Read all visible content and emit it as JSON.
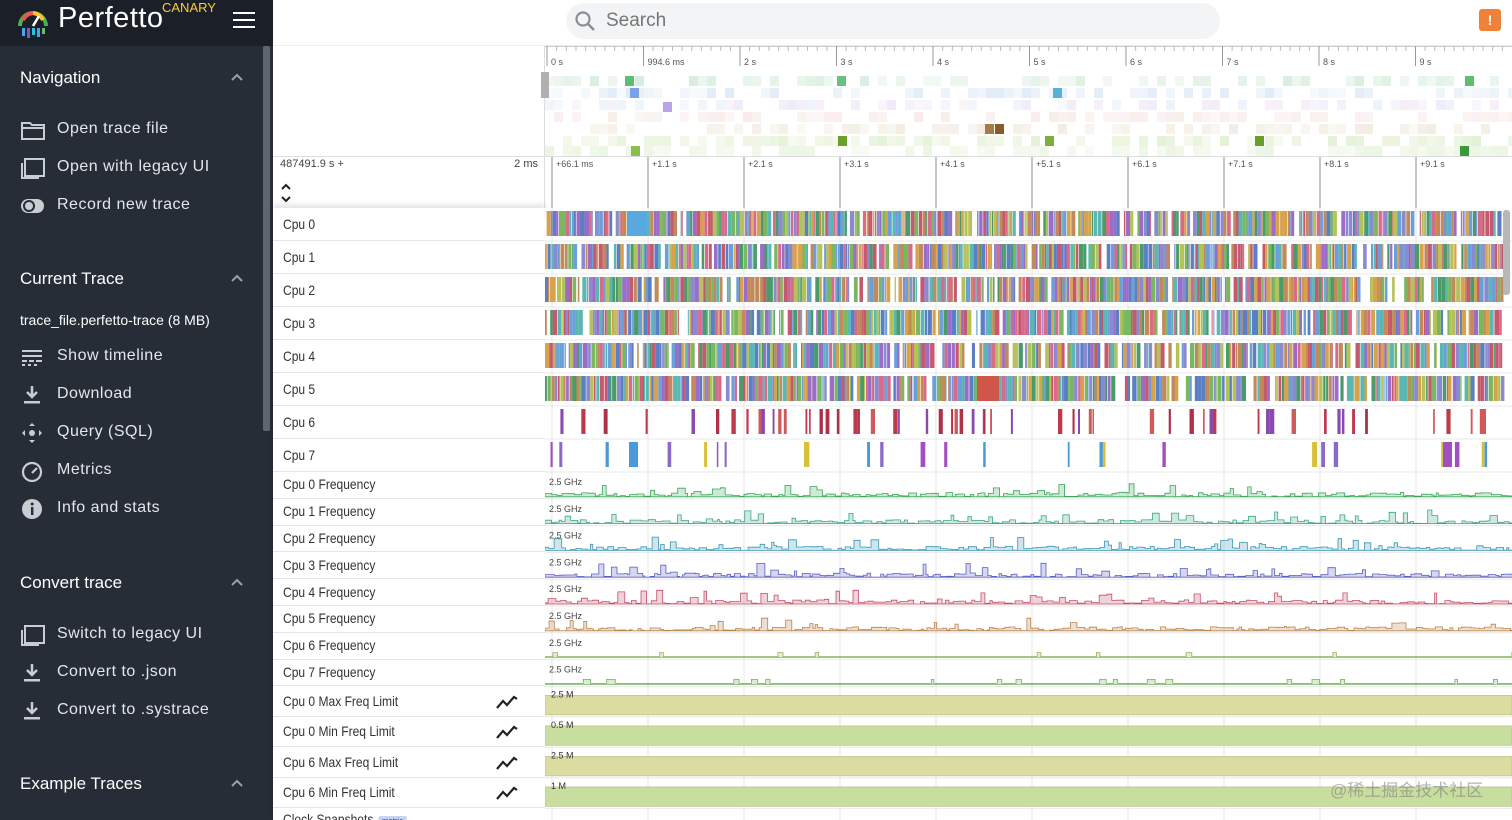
{
  "app": {
    "name": "Perfetto",
    "channel": "CANARY"
  },
  "search": {
    "placeholder": "Search"
  },
  "alert": {
    "symbol": "!"
  },
  "sidebar": {
    "navigation": {
      "title": "Navigation",
      "items": [
        {
          "label": "Open trace file",
          "icon": "folder-icon"
        },
        {
          "label": "Open with legacy UI",
          "icon": "window-icon"
        },
        {
          "label": "Record new trace",
          "icon": "record-toggle-icon"
        }
      ]
    },
    "current_trace": {
      "title": "Current Trace",
      "trace_name": "trace_file.perfetto-trace (8 MB)",
      "items": [
        {
          "label": "Show timeline",
          "icon": "timeline-icon"
        },
        {
          "label": "Download",
          "icon": "download-icon"
        },
        {
          "label": "Query (SQL)",
          "icon": "query-icon"
        },
        {
          "label": "Metrics",
          "icon": "speedometer-icon"
        },
        {
          "label": "Info and stats",
          "icon": "info-icon"
        }
      ]
    },
    "convert_trace": {
      "title": "Convert trace",
      "items": [
        {
          "label": "Switch to legacy UI",
          "icon": "window-icon"
        },
        {
          "label": "Convert to .json",
          "icon": "download-icon"
        },
        {
          "label": "Convert to .systrace",
          "icon": "download-icon"
        }
      ]
    },
    "example_traces": {
      "title": "Example Traces"
    }
  },
  "overview": {
    "ticks": [
      "0 s",
      "994.6 ms",
      "2 s",
      "3 s",
      "4 s",
      "5 s",
      "6 s",
      "7 s",
      "8 s",
      "9 s"
    ]
  },
  "time_axis": {
    "offset": "487491.9 s +",
    "scale": "2 ms",
    "ticks": [
      "+66.1 ms",
      "+1.1 s",
      "+2.1 s",
      "+3.1 s",
      "+4.1 s",
      "+5.1 s",
      "+6.1 s",
      "+7.1 s",
      "+8.1 s",
      "+9.1 s"
    ]
  },
  "tracks": [
    {
      "name": "Cpu 0",
      "kind": "cpu",
      "density": "full"
    },
    {
      "name": "Cpu 1",
      "kind": "cpu",
      "density": "full"
    },
    {
      "name": "Cpu 2",
      "kind": "cpu",
      "density": "full"
    },
    {
      "name": "Cpu 3",
      "kind": "cpu",
      "density": "full"
    },
    {
      "name": "Cpu 4",
      "kind": "cpu",
      "density": "full"
    },
    {
      "name": "Cpu 5",
      "kind": "cpu",
      "density": "full"
    },
    {
      "name": "Cpu 6",
      "kind": "cpu",
      "density": "sparse"
    },
    {
      "name": "Cpu 7",
      "kind": "cpu",
      "density": "sparser"
    },
    {
      "name": "Cpu 0 Frequency",
      "kind": "freq",
      "label": "2.5 GHz",
      "color": "#3aa65a"
    },
    {
      "name": "Cpu 1 Frequency",
      "kind": "freq",
      "label": "2.5 GHz",
      "color": "#3aa68a"
    },
    {
      "name": "Cpu 2 Frequency",
      "kind": "freq",
      "label": "2.5 GHz",
      "color": "#3a96b0"
    },
    {
      "name": "Cpu 3 Frequency",
      "kind": "freq",
      "label": "2.5 GHz",
      "color": "#5b5fc4"
    },
    {
      "name": "Cpu 4 Frequency",
      "kind": "freq",
      "label": "2.5 GHz",
      "color": "#c44f66"
    },
    {
      "name": "Cpu 5 Frequency",
      "kind": "freq",
      "label": "2.5 GHz",
      "color": "#b9834a"
    },
    {
      "name": "Cpu 6 Frequency",
      "kind": "freq",
      "label": "2.5 GHz",
      "color": "#8fb35a"
    },
    {
      "name": "Cpu 7 Frequency",
      "kind": "freq",
      "label": "2.5 GHz",
      "color": "#6db35a"
    },
    {
      "name": "Cpu 0 Max Freq Limit",
      "kind": "limit",
      "label": "2.5 M",
      "fill": "#dcdba0",
      "chart": true
    },
    {
      "name": "Cpu 0 Min Freq Limit",
      "kind": "limit",
      "label": "0.5 M",
      "fill": "#c8de9e",
      "chart": true
    },
    {
      "name": "Cpu 6 Max Freq Limit",
      "kind": "limit",
      "label": "2.5 M",
      "fill": "#dcdba0",
      "chart": true
    },
    {
      "name": "Cpu 6 Min Freq Limit",
      "kind": "limit",
      "label": "1 M",
      "fill": "#c8de9e",
      "chart": true
    },
    {
      "name": "Clock Snapshots",
      "kind": "clock",
      "badge": "metric"
    }
  ],
  "watermark": "@稀土掘金技术社区"
}
